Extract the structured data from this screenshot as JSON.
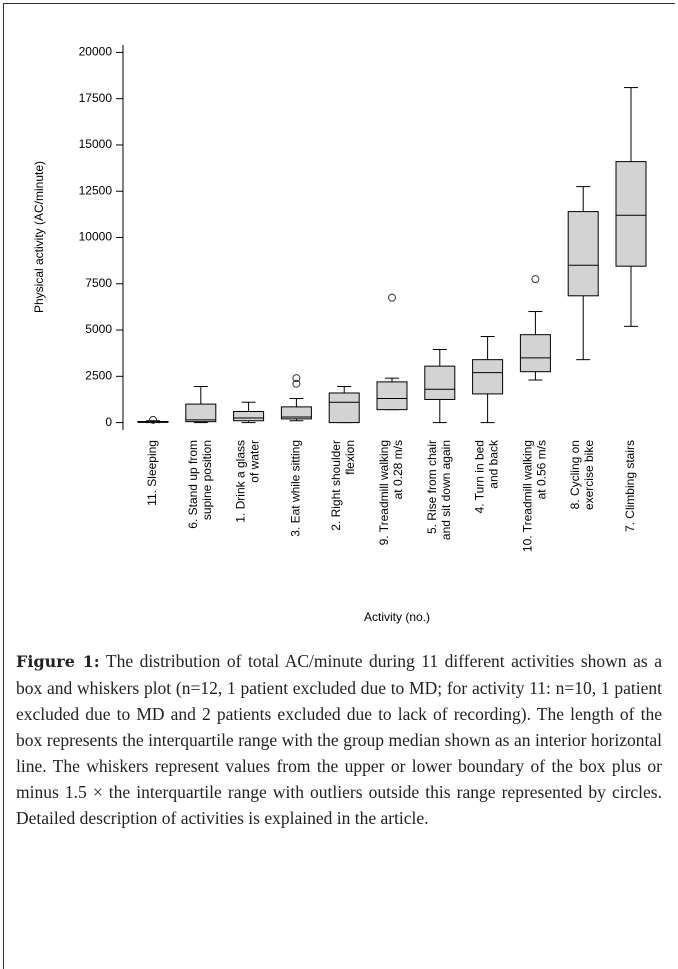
{
  "chart_data": {
    "type": "box",
    "ylabel": "Physical activity (AC/minute)",
    "xlabel": "Activity (no.)",
    "categories": [
      [
        "11. Sleeping"
      ],
      [
        "6. Stand up from",
        "supine position"
      ],
      [
        "1. Drink a glass",
        "of water"
      ],
      [
        "3. Eat while sitting"
      ],
      [
        "2. Right shoulder",
        "flexion"
      ],
      [
        "9. Treadmill walking",
        "at 0.28 m/s"
      ],
      [
        "5. Rise from chair",
        "and sit down again"
      ],
      [
        "4. Turn in bed",
        "and back"
      ],
      [
        "10. Treadmill walking",
        "at 0.56 m/s"
      ],
      [
        "8. Cycling on",
        "exercise bike"
      ],
      [
        "7. Climbing stairs"
      ]
    ],
    "boxes": [
      {
        "low": 0,
        "q1": 10,
        "median": 30,
        "q3": 60,
        "high": 100,
        "outliers": [
          150
        ]
      },
      {
        "low": 0,
        "q1": 50,
        "median": 150,
        "q3": 1000,
        "high": 1950,
        "outliers": []
      },
      {
        "low": 0,
        "q1": 100,
        "median": 250,
        "q3": 600,
        "high": 1100,
        "outliers": []
      },
      {
        "low": 100,
        "q1": 200,
        "median": 300,
        "q3": 850,
        "high": 1300,
        "outliers": [
          2100,
          2400
        ]
      },
      {
        "low": 0,
        "q1": 0,
        "median": 1100,
        "q3": 1600,
        "high": 1950,
        "outliers": []
      },
      {
        "low": 700,
        "q1": 700,
        "median": 1300,
        "q3": 2200,
        "high": 2400,
        "outliers": [
          6750
        ]
      },
      {
        "low": 0,
        "q1": 1250,
        "median": 1800,
        "q3": 3050,
        "high": 3950,
        "outliers": []
      },
      {
        "low": 0,
        "q1": 1550,
        "median": 2700,
        "q3": 3400,
        "high": 4650,
        "outliers": []
      },
      {
        "low": 2300,
        "q1": 2750,
        "median": 3500,
        "q3": 4750,
        "high": 6000,
        "outliers": [
          7750
        ]
      },
      {
        "low": 3400,
        "q1": 6850,
        "median": 8500,
        "q3": 11400,
        "high": 12750,
        "outliers": []
      },
      {
        "low": 5200,
        "q1": 8450,
        "median": 11200,
        "q3": 14100,
        "high": 18100,
        "outliers": []
      }
    ],
    "color": "#d3d3d3",
    "ylim": [
      -400,
      20400
    ],
    "yticks": [
      0,
      2500,
      5000,
      7500,
      10000,
      12500,
      15000,
      17500,
      20000
    ]
  },
  "caption": {
    "label": "Figure 1:",
    "text": "The distribution of total AC/minute during 11 different activities shown as a box and whiskers plot (n=12, 1 patient excluded due to MD; for activity 11: n=10, 1 patient excluded due to MD and 2 patients excluded due to lack of recording). The length of the box represents the interquartile range with the group median shown as an interior horizontal line. The whiskers represent values from the upper or lower boundary of the box plus or minus 1.5 × the interquartile range with outliers outside this range represented by circles. Detailed description of activities is explained in the article."
  }
}
